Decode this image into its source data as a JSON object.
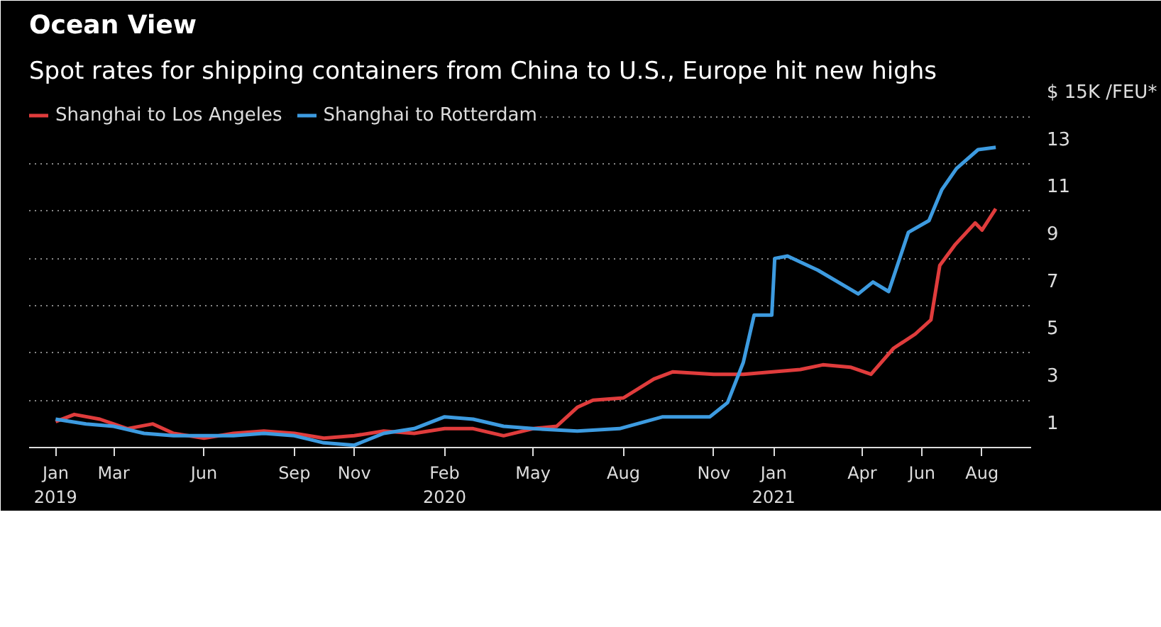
{
  "chart_data": {
    "type": "line",
    "title": "Ocean View",
    "subtitle": "Spot rates for shipping containers from China to U.S., Europe hit new highs",
    "xlim": [
      "2018-12-05",
      "2021-09-20"
    ],
    "xticks": [
      {
        "value": "2019-01-01",
        "label": "Jan\n2019"
      },
      {
        "value": "2019-03-01",
        "label": "Mar"
      },
      {
        "value": "2019-06-01",
        "label": "Jun"
      },
      {
        "value": "2019-09-01",
        "label": "Sep"
      },
      {
        "value": "2019-11-01",
        "label": "Nov"
      },
      {
        "value": "2020-02-01",
        "label": "Feb\n2020"
      },
      {
        "value": "2020-05-01",
        "label": "May"
      },
      {
        "value": "2020-08-01",
        "label": "Aug"
      },
      {
        "value": "2020-11-01",
        "label": "Nov"
      },
      {
        "value": "2021-01-01",
        "label": "Jan\n2021"
      },
      {
        "value": "2021-04-01",
        "label": "Apr"
      },
      {
        "value": "2021-06-01",
        "label": "Jun"
      },
      {
        "value": "2021-08-01",
        "label": "Aug"
      }
    ],
    "ylim": [
      0,
      15
    ],
    "yticks": [
      1,
      {
        "value": 2,
        "label": null
      },
      3,
      {
        "value": 4,
        "label": null
      },
      5,
      {
        "value": 6,
        "label": null
      },
      7,
      {
        "value": 8,
        "label": null
      },
      9,
      {
        "value": 10,
        "label": null
      },
      11,
      {
        "value": 12,
        "label": null
      },
      13,
      {
        "value": 14,
        "label": null
      },
      {
        "value": 15,
        "label": "$ 15K /FEU*"
      }
    ],
    "grid": "y",
    "legend": "top",
    "line_style": "solid",
    "marker": "none",
    "series": [
      {
        "name": "Shanghai to Los Angeles",
        "color": "#e03c3c",
        "x": [
          "2019-01-01",
          "2019-01-20",
          "2019-02-15",
          "2019-03-15",
          "2019-04-10",
          "2019-05-01",
          "2019-06-01",
          "2019-07-01",
          "2019-08-01",
          "2019-09-01",
          "2019-10-01",
          "2019-11-01",
          "2019-12-01",
          "2020-01-01",
          "2020-02-01",
          "2020-03-01",
          "2020-04-01",
          "2020-05-01",
          "2020-05-25",
          "2020-06-15",
          "2020-07-01",
          "2020-08-01",
          "2020-09-01",
          "2020-09-20",
          "2020-11-01",
          "2020-12-01",
          "2021-01-28",
          "2021-02-20",
          "2021-03-20",
          "2021-04-10",
          "2021-05-03",
          "2021-05-25",
          "2021-06-10",
          "2021-06-19",
          "2021-07-05",
          "2021-07-25",
          "2021-08-01",
          "2021-08-15"
        ],
        "values": [
          1.1,
          1.4,
          1.2,
          0.8,
          1.0,
          0.6,
          0.4,
          0.6,
          0.7,
          0.6,
          0.4,
          0.5,
          0.7,
          0.6,
          0.8,
          0.8,
          0.5,
          0.8,
          0.9,
          1.7,
          2.0,
          2.1,
          2.9,
          3.2,
          3.1,
          3.1,
          3.3,
          3.5,
          3.4,
          3.1,
          4.2,
          4.8,
          5.4,
          7.7,
          8.6,
          9.5,
          9.2,
          10.1
        ]
      },
      {
        "name": "Shanghai to Rotterdam",
        "color": "#3d9be0",
        "x": [
          "2019-01-01",
          "2019-02-01",
          "2019-03-01",
          "2019-04-01",
          "2019-05-01",
          "2019-06-01",
          "2019-07-01",
          "2019-08-01",
          "2019-09-01",
          "2019-10-01",
          "2019-11-01",
          "2019-12-01",
          "2020-01-01",
          "2020-02-01",
          "2020-03-01",
          "2020-04-01",
          "2020-05-01",
          "2020-06-15",
          "2020-07-28",
          "2020-09-10",
          "2020-10-28",
          "2020-11-15",
          "2020-12-01",
          "2020-12-12",
          "2020-12-30",
          "2021-01-02",
          "2021-01-15",
          "2021-02-15",
          "2021-03-28",
          "2021-04-12",
          "2021-04-28",
          "2021-05-18",
          "2021-06-08",
          "2021-06-21",
          "2021-07-06",
          "2021-07-28",
          "2021-08-15"
        ],
        "values": [
          1.2,
          1.0,
          0.9,
          0.6,
          0.5,
          0.5,
          0.5,
          0.6,
          0.5,
          0.2,
          0.1,
          0.6,
          0.8,
          1.3,
          1.2,
          0.9,
          0.8,
          0.7,
          0.8,
          1.3,
          1.3,
          1.9,
          3.6,
          5.6,
          5.6,
          8.0,
          8.1,
          7.5,
          6.5,
          7.0,
          6.6,
          9.1,
          9.6,
          10.9,
          11.8,
          12.6,
          12.7
        ]
      }
    ]
  }
}
